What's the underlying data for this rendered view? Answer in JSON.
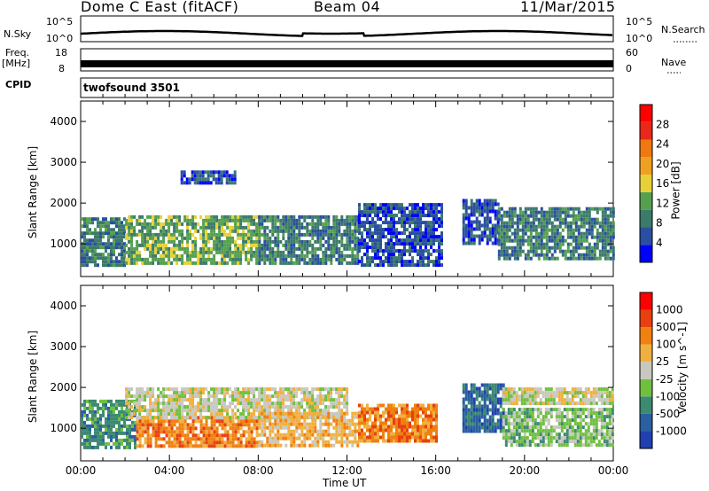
{
  "header": {
    "station": "Dome C East (fitACF)",
    "beam": "Beam 04",
    "date": "11/Mar/2015"
  },
  "panels": {
    "nsky": {
      "label": "N.Sky",
      "top": "10^5",
      "bottom": "10^0",
      "right_label": "N.Search",
      "right_top": "10^5",
      "right_bottom": "10^0"
    },
    "freq": {
      "label": "Freq.",
      "unit": "[MHz]",
      "top": "18",
      "bottom": "8",
      "right_label": "Nave",
      "right_top": "60",
      "right_bottom": "0"
    },
    "cpid": {
      "label": "CPID",
      "value": "twofsound 3501"
    }
  },
  "colors": {
    "frame": "#000000"
  },
  "chart_data": [
    {
      "type": "heatmap",
      "name": "power",
      "ylabel": "Slant Range [km]",
      "ylim": [
        200,
        4500
      ],
      "yticks": [
        "1000",
        "2000",
        "3000",
        "4000"
      ],
      "xlim": [
        0,
        24
      ],
      "colorbar": {
        "label": "Power [dB]",
        "ticks": [
          "28",
          "24",
          "20",
          "16",
          "12",
          "8",
          "4"
        ],
        "colors": [
          "#0000ff",
          "#2a4fa0",
          "#3c7a6a",
          "#55a050",
          "#e8d038",
          "#f0a020",
          "#f07810",
          "#e82818",
          "#ff0000"
        ]
      },
      "bands": [
        {
          "x0": 0.0,
          "x1": 2.0,
          "r0": 500,
          "r1": 1650,
          "level": 2
        },
        {
          "x0": 2.0,
          "x1": 8.0,
          "r0": 500,
          "r1": 1700,
          "level": 3
        },
        {
          "x0": 8.0,
          "x1": 12.5,
          "r0": 500,
          "r1": 1700,
          "level": 2
        },
        {
          "x0": 12.5,
          "x1": 16.3,
          "r0": 500,
          "r1": 2000,
          "level": 1
        },
        {
          "x0": 17.2,
          "x1": 18.8,
          "r0": 1000,
          "r1": 2100,
          "level": 1
        },
        {
          "x0": 18.8,
          "x1": 24.0,
          "r0": 600,
          "r1": 1900,
          "level": 2
        },
        {
          "x0": 4.5,
          "x1": 7.0,
          "r0": 2500,
          "r1": 2800,
          "level": 1
        }
      ]
    },
    {
      "type": "heatmap",
      "name": "velocity",
      "ylabel": "Slant Range [km]",
      "ylim": [
        200,
        4500
      ],
      "yticks": [
        "1000",
        "2000",
        "3000",
        "4000"
      ],
      "xlim": [
        0,
        24
      ],
      "xticks": [
        "00:00",
        "04:00",
        "08:00",
        "12:00",
        "16:00",
        "20:00",
        "00:00"
      ],
      "xlabel": "Time UT",
      "colorbar": {
        "label": "Velocity [m s^-1]",
        "ticks": [
          "1000",
          "500",
          "100",
          "25",
          "-25",
          "-100",
          "-500",
          "-1000"
        ],
        "colors": [
          "#2040b0",
          "#2a5fa0",
          "#3c8a70",
          "#70c040",
          "#c8c8c0",
          "#f0b040",
          "#f08010",
          "#e84010",
          "#ff0000"
        ]
      },
      "bands": [
        {
          "x0": 0.0,
          "x1": 2.5,
          "r0": 500,
          "r1": 1700,
          "level": 2
        },
        {
          "x0": 2.5,
          "x1": 8.0,
          "r0": 600,
          "r1": 1300,
          "level": 6
        },
        {
          "x0": 2.0,
          "x1": 12.0,
          "r0": 1300,
          "r1": 2000,
          "level": 4
        },
        {
          "x0": 8.0,
          "x1": 12.5,
          "r0": 600,
          "r1": 1400,
          "level": 5
        },
        {
          "x0": 12.5,
          "x1": 16.0,
          "r0": 700,
          "r1": 1600,
          "level": 6
        },
        {
          "x0": 17.2,
          "x1": 19.0,
          "r0": 900,
          "r1": 2100,
          "level": 1
        },
        {
          "x0": 19.0,
          "x1": 24.0,
          "r0": 600,
          "r1": 1500,
          "level": 3
        },
        {
          "x0": 19.0,
          "x1": 24.0,
          "r0": 1600,
          "r1": 2000,
          "level": 4
        }
      ]
    }
  ]
}
